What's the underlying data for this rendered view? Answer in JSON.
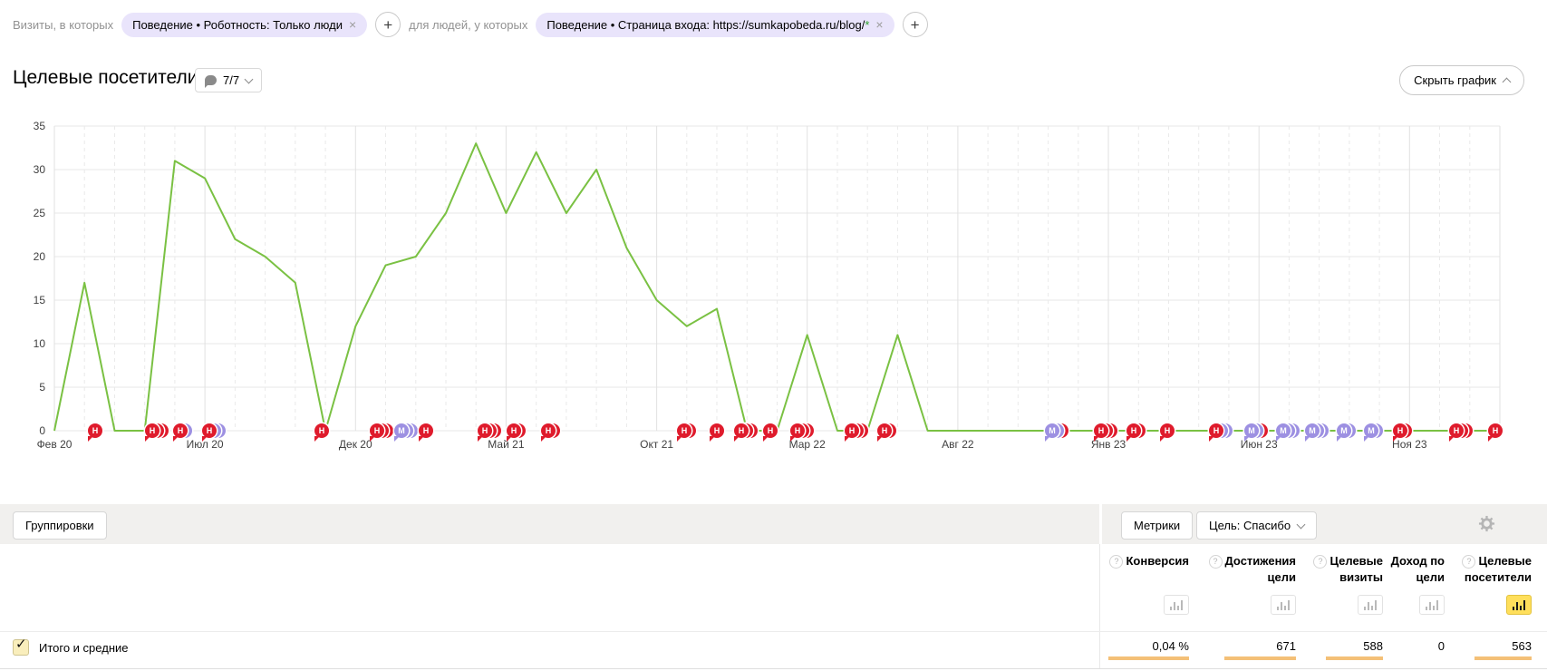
{
  "filters": {
    "visits_label": "Визиты, в которых",
    "people_label": "для людей, у которых",
    "chips": [
      {
        "text": "Поведение • Роботность: Только люди",
        "close": "×"
      },
      {
        "text_prefix": "Поведение • Страница входа: https://sumkapobeda.ru/blog/",
        "text_star": "*",
        "close": "×"
      }
    ],
    "add_label": "+"
  },
  "header": {
    "title": "Целевые посетители",
    "comments_count": "7/7",
    "hide_chart_label": "Скрыть график"
  },
  "chart_data": {
    "type": "line",
    "title": "Целевые посетители",
    "ylim": [
      0,
      35
    ],
    "y_ticks": [
      0,
      5,
      10,
      15,
      20,
      25,
      30,
      35
    ],
    "grid": "on",
    "x_ticks": [
      {
        "index": 0,
        "label": "Фев 20"
      },
      {
        "index": 5,
        "label": "Июл 20"
      },
      {
        "index": 10,
        "label": "Дек 20"
      },
      {
        "index": 15,
        "label": "Май 21"
      },
      {
        "index": 20,
        "label": "Окт 21"
      },
      {
        "index": 25,
        "label": "Мар 22"
      },
      {
        "index": 30,
        "label": "Авг 22"
      },
      {
        "index": 35,
        "label": "Янв 23"
      },
      {
        "index": 40,
        "label": "Июн 23"
      },
      {
        "index": 45,
        "label": "Ноя 23"
      }
    ],
    "series": [
      {
        "name": "Целевые посетители",
        "color": "#7ac143",
        "values": [
          0,
          17,
          0,
          0,
          31,
          29,
          22,
          20,
          17,
          0,
          12,
          19,
          20,
          25,
          33,
          25,
          32,
          25,
          30,
          21,
          15,
          12,
          14,
          0,
          0,
          11,
          0,
          0,
          11,
          0,
          0,
          0,
          0,
          0,
          0,
          0,
          0,
          0,
          0,
          0,
          0,
          0,
          0,
          0,
          0,
          0,
          0,
          0,
          0
        ]
      }
    ],
    "annotations": [
      {
        "x_pct": 2.8,
        "letter": "Н",
        "layers": [
          "red"
        ]
      },
      {
        "x_pct": 6.8,
        "letter": "Н",
        "layers": [
          "red",
          "red",
          "red"
        ]
      },
      {
        "x_pct": 8.7,
        "letter": "Н",
        "layers": [
          "red",
          "purple"
        ]
      },
      {
        "x_pct": 10.7,
        "letter": "Н",
        "layers": [
          "red",
          "purple",
          "purple"
        ]
      },
      {
        "x_pct": 18.5,
        "letter": "Н",
        "layers": [
          "red"
        ]
      },
      {
        "x_pct": 22.3,
        "letter": "Н",
        "layers": [
          "red",
          "red",
          "red"
        ]
      },
      {
        "x_pct": 24.0,
        "letter": "М",
        "layers": [
          "purple",
          "purple",
          "purple"
        ]
      },
      {
        "x_pct": 25.7,
        "letter": "Н",
        "layers": [
          "red"
        ]
      },
      {
        "x_pct": 29.8,
        "letter": "Н",
        "layers": [
          "red",
          "red",
          "red"
        ]
      },
      {
        "x_pct": 31.8,
        "letter": "Н",
        "layers": [
          "red",
          "red"
        ]
      },
      {
        "x_pct": 34.2,
        "letter": "Н",
        "layers": [
          "red",
          "red"
        ]
      },
      {
        "x_pct": 43.6,
        "letter": "Н",
        "layers": [
          "red",
          "red"
        ]
      },
      {
        "x_pct": 45.8,
        "letter": "Н",
        "layers": [
          "red"
        ]
      },
      {
        "x_pct": 47.5,
        "letter": "Н",
        "layers": [
          "red",
          "red",
          "red"
        ]
      },
      {
        "x_pct": 49.5,
        "letter": "Н",
        "layers": [
          "red"
        ]
      },
      {
        "x_pct": 51.4,
        "letter": "Н",
        "layers": [
          "red",
          "red",
          "red"
        ]
      },
      {
        "x_pct": 55.2,
        "letter": "Н",
        "layers": [
          "red",
          "red",
          "red"
        ]
      },
      {
        "x_pct": 57.4,
        "letter": "Н",
        "layers": [
          "red",
          "red"
        ]
      },
      {
        "x_pct": 69.0,
        "letter": "М",
        "layers": [
          "purple",
          "purple",
          "red"
        ]
      },
      {
        "x_pct": 72.4,
        "letter": "Н",
        "layers": [
          "red",
          "red",
          "red"
        ]
      },
      {
        "x_pct": 74.7,
        "letter": "Н",
        "layers": [
          "red",
          "red"
        ]
      },
      {
        "x_pct": 77.0,
        "letter": "Н",
        "layers": [
          "red"
        ]
      },
      {
        "x_pct": 80.4,
        "letter": "Н",
        "layers": [
          "red",
          "purple",
          "purple"
        ]
      },
      {
        "x_pct": 82.8,
        "letter": "М",
        "layers": [
          "purple",
          "purple",
          "red"
        ]
      },
      {
        "x_pct": 85.0,
        "letter": "М",
        "layers": [
          "purple",
          "purple",
          "purple"
        ]
      },
      {
        "x_pct": 87.0,
        "letter": "М",
        "layers": [
          "purple",
          "purple",
          "purple"
        ]
      },
      {
        "x_pct": 89.2,
        "letter": "М",
        "layers": [
          "purple",
          "purple"
        ]
      },
      {
        "x_pct": 91.1,
        "letter": "М",
        "layers": [
          "purple",
          "purple"
        ]
      },
      {
        "x_pct": 93.1,
        "letter": "Н",
        "layers": [
          "red",
          "red"
        ]
      },
      {
        "x_pct": 97.0,
        "letter": "Н",
        "layers": [
          "red",
          "red",
          "red"
        ]
      },
      {
        "x_pct": 99.7,
        "letter": "Н",
        "layers": [
          "red"
        ]
      }
    ],
    "marker_colors": {
      "red": "#df1b2c",
      "purple": "#9d90e2"
    }
  },
  "toolbar": {
    "groupings": "Группировки",
    "metrics": "Метрики",
    "goal": "Цель: Спасибо"
  },
  "table": {
    "columns": [
      {
        "label": "Конверсия",
        "has_help": true,
        "selected": false
      },
      {
        "label": "Достижения цели",
        "has_help": true,
        "selected": false
      },
      {
        "label": "Целевые визиты",
        "has_help": true,
        "selected": false
      },
      {
        "label": "Доход по цели",
        "has_help": false,
        "selected": false
      },
      {
        "label": "Целевые посетители",
        "has_help": true,
        "selected": true
      }
    ],
    "totals": {
      "label": "Итого и средние",
      "values": [
        "0,04 %",
        "671",
        "588",
        "0",
        "563"
      ],
      "underline": [
        true,
        true,
        true,
        false,
        true
      ]
    }
  }
}
